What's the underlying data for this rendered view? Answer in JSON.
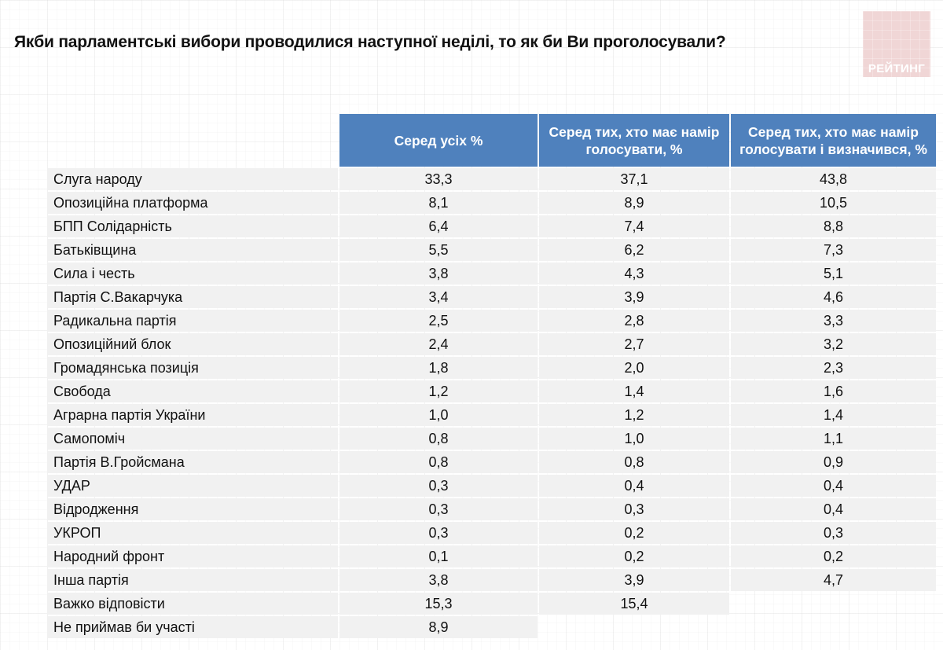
{
  "title": "Якби парламентські вибори проводилися наступної неділі, то як би Ви проголосували?",
  "logo": {
    "text": "РЕЙТИНГ",
    "color": "#f0d6d6"
  },
  "colors": {
    "header_bg": "#4f81bd",
    "row_bg": "#f1f1f1"
  },
  "table": {
    "columns": [
      "Серед усіх %",
      "Серед тих, хто має намір голосувати, %",
      "Серед тих, хто має намір голосувати і визначився, %"
    ],
    "rows": [
      {
        "label": "Слуга народу",
        "values": [
          "33,3",
          "37,1",
          "43,8"
        ]
      },
      {
        "label": "Опозиційна платформа",
        "values": [
          "8,1",
          "8,9",
          "10,5"
        ]
      },
      {
        "label": "БПП Солідарність",
        "values": [
          "6,4",
          "7,4",
          "8,8"
        ]
      },
      {
        "label": "Батьківщина",
        "values": [
          "5,5",
          "6,2",
          "7,3"
        ]
      },
      {
        "label": "Сила і честь",
        "values": [
          "3,8",
          "4,3",
          "5,1"
        ]
      },
      {
        "label": "Партія С.Вакарчука",
        "values": [
          "3,4",
          "3,9",
          "4,6"
        ]
      },
      {
        "label": "Радикальна партія",
        "values": [
          "2,5",
          "2,8",
          "3,3"
        ]
      },
      {
        "label": "Опозиційний блок",
        "values": [
          "2,4",
          "2,7",
          "3,2"
        ]
      },
      {
        "label": "Громадянська позиція",
        "values": [
          "1,8",
          "2,0",
          "2,3"
        ]
      },
      {
        "label": "Свобода",
        "values": [
          "1,2",
          "1,4",
          "1,6"
        ]
      },
      {
        "label": "Аграрна партія України",
        "values": [
          "1,0",
          "1,2",
          "1,4"
        ]
      },
      {
        "label": "Самопоміч",
        "values": [
          "0,8",
          "1,0",
          "1,1"
        ]
      },
      {
        "label": "Партія В.Гройсмана",
        "values": [
          "0,8",
          "0,8",
          "0,9"
        ]
      },
      {
        "label": "УДАР",
        "values": [
          "0,3",
          "0,4",
          "0,4"
        ]
      },
      {
        "label": "Відродження",
        "values": [
          "0,3",
          "0,3",
          "0,4"
        ]
      },
      {
        "label": "УКРОП",
        "values": [
          "0,3",
          "0,2",
          "0,3"
        ]
      },
      {
        "label": "Народний фронт",
        "values": [
          "0,1",
          "0,2",
          "0,2"
        ]
      },
      {
        "label": "Інша партія",
        "values": [
          "3,8",
          "3,9",
          "4,7"
        ]
      },
      {
        "label": "Важко відповісти",
        "values": [
          "15,3",
          "15,4",
          null
        ]
      },
      {
        "label": "Не приймав би участі",
        "values": [
          "8,9",
          null,
          null
        ]
      }
    ]
  },
  "chart_data": {
    "type": "table",
    "title": "Якби парламентські вибори проводилися наступної неділі, то як би Ви проголосували?",
    "categories": [
      "Слуга народу",
      "Опозиційна платформа",
      "БПП Солідарність",
      "Батьківщина",
      "Сила і честь",
      "Партія С.Вакарчука",
      "Радикальна партія",
      "Опозиційний блок",
      "Громадянська позиція",
      "Свобода",
      "Аграрна партія України",
      "Самопоміч",
      "Партія В.Гройсмана",
      "УДАР",
      "Відродження",
      "УКРОП",
      "Народний фронт",
      "Інша партія",
      "Важко відповісти",
      "Не приймав би участі"
    ],
    "series": [
      {
        "name": "Серед усіх %",
        "values": [
          33.3,
          8.1,
          6.4,
          5.5,
          3.8,
          3.4,
          2.5,
          2.4,
          1.8,
          1.2,
          1.0,
          0.8,
          0.8,
          0.3,
          0.3,
          0.3,
          0.1,
          3.8,
          15.3,
          8.9
        ]
      },
      {
        "name": "Серед тих, хто має намір голосувати, %",
        "values": [
          37.1,
          8.9,
          7.4,
          6.2,
          4.3,
          3.9,
          2.8,
          2.7,
          2.0,
          1.4,
          1.2,
          1.0,
          0.8,
          0.4,
          0.3,
          0.2,
          0.2,
          3.9,
          15.4,
          null
        ]
      },
      {
        "name": "Серед тих, хто має намір голосувати і визначився, %",
        "values": [
          43.8,
          10.5,
          8.8,
          7.3,
          5.1,
          4.6,
          3.3,
          3.2,
          2.3,
          1.6,
          1.4,
          1.1,
          0.9,
          0.4,
          0.4,
          0.3,
          0.2,
          4.7,
          null,
          null
        ]
      }
    ]
  }
}
